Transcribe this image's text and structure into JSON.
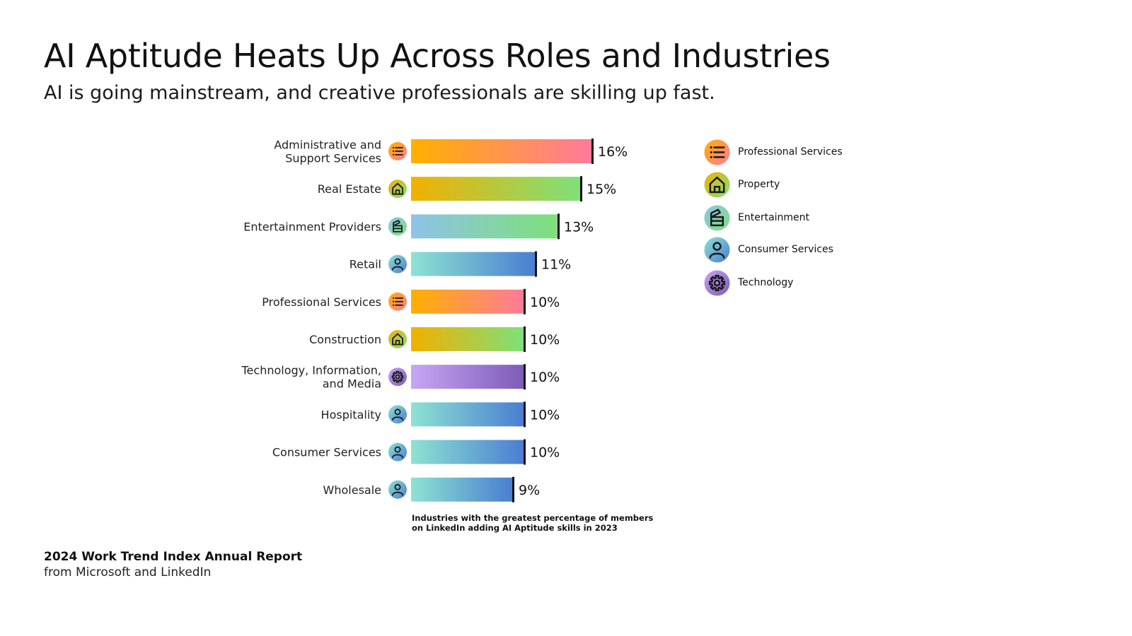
{
  "header": {
    "title": "AI Aptitude Heats Up Across Roles and Industries",
    "subtitle": "AI is going mainstream, and creative professionals are skilling up fast."
  },
  "colors": {
    "professional": [
      "#FFB000",
      "#FF7A9A"
    ],
    "property": [
      "#F2B000",
      "#7EE07A"
    ],
    "entertainment": [
      "#8FC3E8",
      "#7EE07A"
    ],
    "consumer": [
      "#8EE3D2",
      "#4A7DD2"
    ],
    "technology": [
      "#C7A6F5",
      "#7D5BB8"
    ],
    "value_marker": "#111111"
  },
  "chart_data": {
    "type": "bar",
    "orientation": "horizontal",
    "categories": [
      [
        "Administrative and",
        "Support Services"
      ],
      [
        "Real Estate"
      ],
      [
        "Entertainment Providers"
      ],
      [
        "Retail"
      ],
      [
        "Professional Services"
      ],
      [
        "Construction"
      ],
      [
        "Technology, Information,",
        "and Media"
      ],
      [
        "Hospitality"
      ],
      [
        "Consumer Services"
      ],
      [
        "Wholesale"
      ]
    ],
    "values": [
      16,
      15,
      13,
      11,
      10,
      10,
      10,
      10,
      10,
      9
    ],
    "value_labels": [
      "16%",
      "15%",
      "13%",
      "11%",
      "10%",
      "10%",
      "10%",
      "10%",
      "10%",
      "9%"
    ],
    "groups": [
      "professional",
      "property",
      "entertainment",
      "consumer",
      "professional",
      "property",
      "technology",
      "consumer",
      "consumer",
      "consumer"
    ],
    "group_icons": {
      "professional": "list-icon",
      "property": "house-icon",
      "entertainment": "clapperboard-icon",
      "consumer": "person-icon",
      "technology": "gear-icon"
    },
    "xlim": [
      0,
      16
    ],
    "grid": false,
    "legend_position": "right",
    "legend": [
      {
        "group": "professional",
        "label": "Professional Services"
      },
      {
        "group": "property",
        "label": "Property"
      },
      {
        "group": "entertainment",
        "label": "Entertainment"
      },
      {
        "group": "consumer",
        "label": "Consumer Services"
      },
      {
        "group": "technology",
        "label": "Technology"
      }
    ],
    "caption": [
      "Industries with the greatest percentage of members",
      "on LinkedIn adding AI Aptitude skills in 2023"
    ]
  },
  "footer": {
    "title": "2024 Work Trend Index Annual Report",
    "subtitle": "from Microsoft and LinkedIn"
  }
}
